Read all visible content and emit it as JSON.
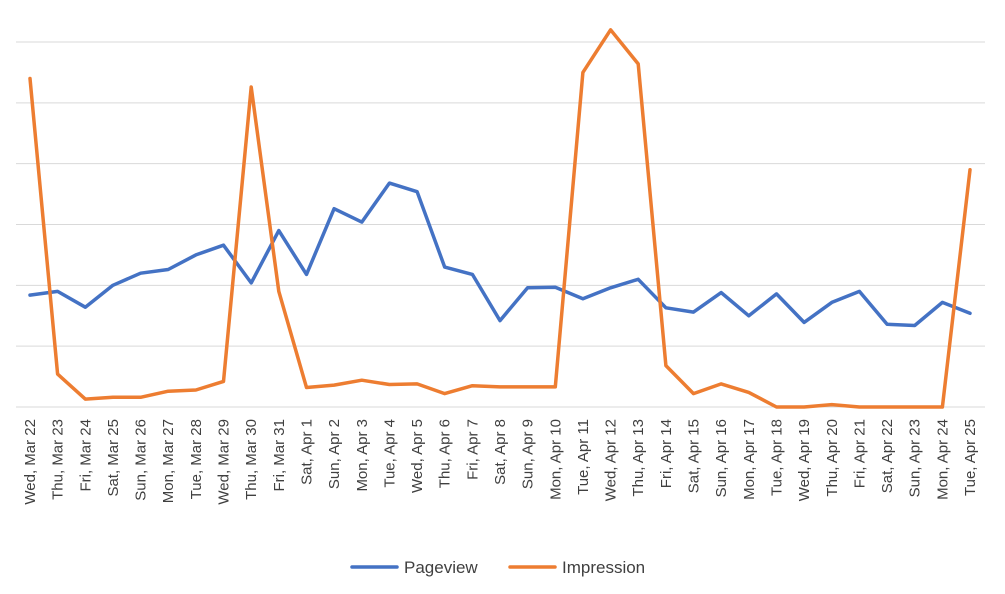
{
  "chart_data": {
    "type": "line",
    "categories": [
      "Wed, Mar 22",
      "Thu, Mar 23",
      "Fri, Mar 24",
      "Sat, Mar 25",
      "Sun, Mar 26",
      "Mon, Mar 27",
      "Tue, Mar 28",
      "Wed, Mar 29",
      "Thu, Mar 30",
      "Fri, Mar 31",
      "Sat, Apr 1",
      "Sun, Apr 2",
      "Mon, Apr 3",
      "Tue, Apr 4",
      "Wed, Apr 5",
      "Thu, Apr 6",
      "Fri, Apr 7",
      "Sat, Apr 8",
      "Sun, Apr 9",
      "Mon, Apr 10",
      "Tue, Apr 11",
      "Wed, Apr 12",
      "Thu, Apr 13",
      "Fri, Apr 14",
      "Sat, Apr 15",
      "Sun, Apr 16",
      "Mon, Apr 17",
      "Tue, Apr 18",
      "Wed, Apr 19",
      "Thu, Apr 20",
      "Fri, Apr 21",
      "Sat, Apr 22",
      "Sun, Apr 23",
      "Mon, Apr 24",
      "Tue, Apr 25"
    ],
    "series": [
      {
        "name": "Pageview",
        "color": "#4472C4",
        "values": [
          1.84,
          1.9,
          1.64,
          2.0,
          2.2,
          2.26,
          2.5,
          2.66,
          2.04,
          2.9,
          2.18,
          3.26,
          3.04,
          3.68,
          3.54,
          2.3,
          2.18,
          1.42,
          1.96,
          1.97,
          1.78,
          1.96,
          2.1,
          1.63,
          1.56,
          1.88,
          1.5,
          1.86,
          1.39,
          1.72,
          1.9,
          1.36,
          1.34,
          1.72,
          1.54
        ]
      },
      {
        "name": "Impression",
        "color": "#ED7D31",
        "values": [
          5.4,
          0.54,
          0.13,
          0.16,
          0.16,
          0.26,
          0.28,
          0.42,
          5.26,
          1.9,
          0.32,
          0.36,
          0.44,
          0.37,
          0.38,
          0.22,
          0.35,
          0.33,
          0.33,
          0.33,
          5.5,
          6.2,
          5.64,
          0.68,
          0.22,
          0.38,
          0.24,
          0.0,
          0.0,
          0.04,
          0.0,
          0.0,
          0.0,
          0.0,
          3.9
        ]
      }
    ],
    "ylim": [
      0,
      6
    ],
    "y_gridlines": [
      0,
      1,
      2,
      3,
      4,
      5,
      6
    ],
    "y_tick_labels_shown": false,
    "grid": true,
    "legend": "bottom"
  }
}
